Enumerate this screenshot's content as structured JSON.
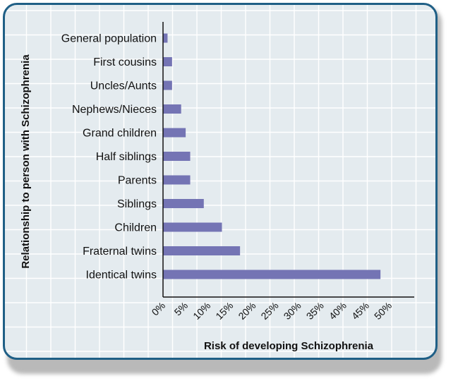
{
  "chart_data": {
    "type": "bar",
    "orientation": "horizontal",
    "categories": [
      "General population",
      "First cousins",
      "Uncles/Aunts",
      "Nephews/Nieces",
      "Grand children",
      "Half siblings",
      "Parents",
      "Siblings",
      "Children",
      "Fraternal twins",
      "Identical twins"
    ],
    "values": [
      1,
      2,
      2,
      4,
      5,
      6,
      6,
      9,
      13,
      17,
      48
    ],
    "xlabel": "Risk of developing Schizophrenia",
    "ylabel": "Relationship to person with Schizophrenia",
    "xlim": [
      0,
      50
    ],
    "xticks": [
      "0%",
      "5%",
      "10%",
      "15%",
      "20%",
      "25%",
      "30%",
      "35%",
      "40%",
      "45%",
      "50%"
    ],
    "grid": true,
    "bar_color": "#7474b4",
    "background_color": "#e4ebef",
    "border_color": "#1f5f86"
  }
}
